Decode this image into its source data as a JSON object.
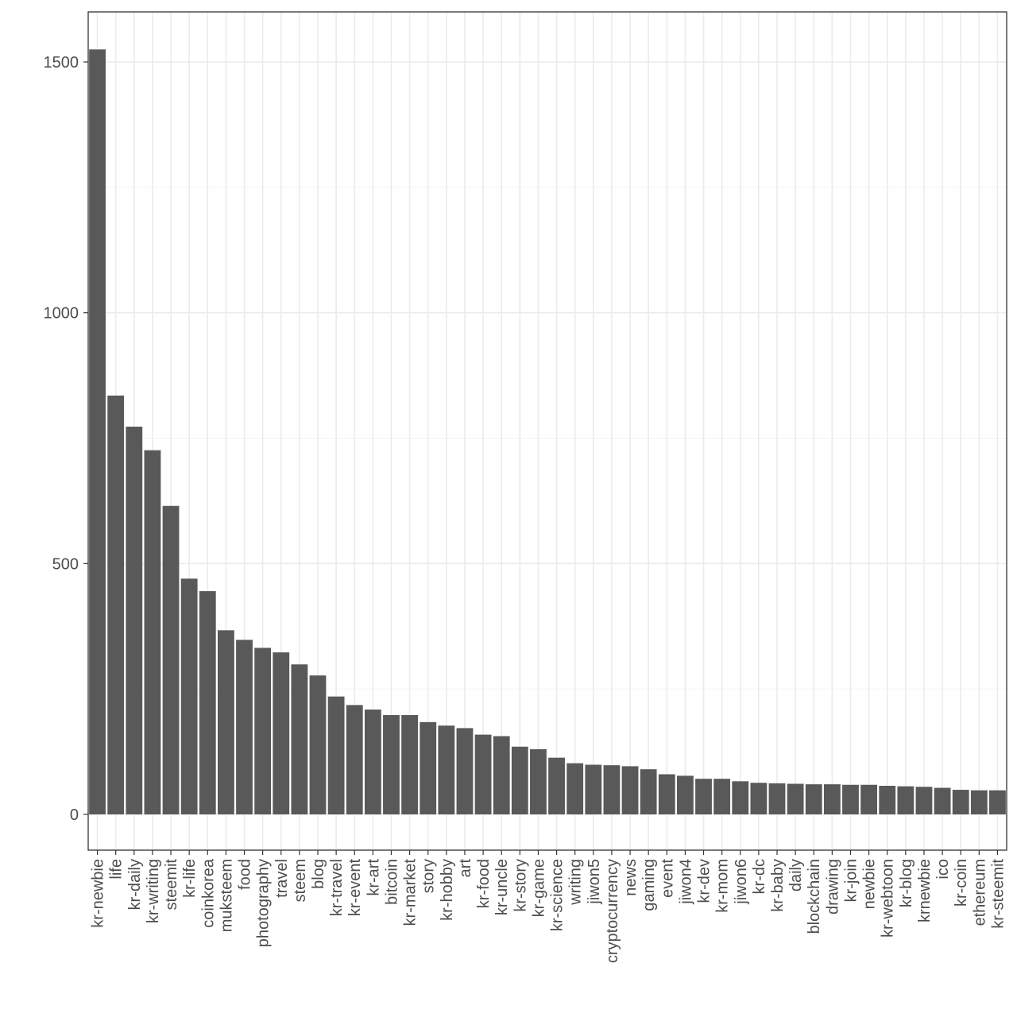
{
  "chart_data": {
    "type": "bar",
    "title": "",
    "xlabel": "",
    "ylabel": "",
    "ylim": [
      -70,
      1595
    ],
    "y_ticks": [
      0,
      500,
      1000,
      1500
    ],
    "y_minor_ticks": [
      250,
      750,
      1250
    ],
    "grid": true,
    "bar_color": "#595959",
    "categories": [
      "kr-newbie",
      "life",
      "kr-daily",
      "kr-writing",
      "steemit",
      "kr-life",
      "coinkorea",
      "muksteem",
      "food",
      "photography",
      "travel",
      "steem",
      "blog",
      "kr-travel",
      "kr-event",
      "kr-art",
      "bitcoin",
      "kr-market",
      "story",
      "kr-hobby",
      "art",
      "kr-food",
      "kr-uncle",
      "kr-story",
      "kr-game",
      "kr-science",
      "writing",
      "jiwon5",
      "cryptocurrency",
      "news",
      "gaming",
      "event",
      "jiwon4",
      "kr-dev",
      "kr-mom",
      "jiwon6",
      "kr-dc",
      "kr-baby",
      "daily",
      "blockchain",
      "drawing",
      "kr-join",
      "newbie",
      "kr-webtoon",
      "kr-blog",
      "krnewbie",
      "ico",
      "kr-coin",
      "ethereum",
      "kr-steemit"
    ],
    "values": [
      1525,
      835,
      773,
      726,
      615,
      470,
      445,
      367,
      348,
      332,
      323,
      299,
      277,
      235,
      218,
      209,
      198,
      198,
      184,
      177,
      172,
      159,
      156,
      135,
      130,
      113,
      102,
      99,
      98,
      96,
      90,
      80,
      77,
      71,
      71,
      66,
      63,
      62,
      61,
      60,
      60,
      59,
      59,
      57,
      56,
      55,
      53,
      49,
      48,
      48
    ]
  }
}
